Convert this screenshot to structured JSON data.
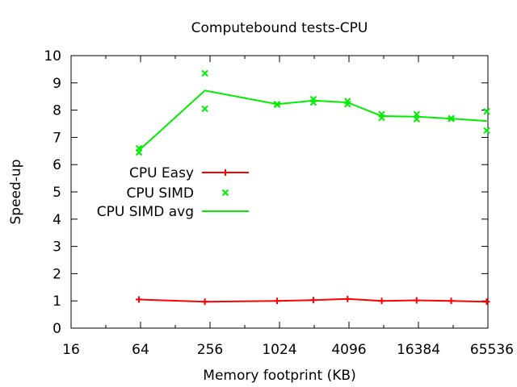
{
  "chart_data": {
    "type": "line",
    "title": "Computebound tests-CPU",
    "xlabel": "Memory footprint (KB)",
    "ylabel": "Speed-up",
    "x_scale": "log2",
    "xlim": [
      16,
      65536
    ],
    "ylim": [
      0,
      10
    ],
    "x_ticks": [
      16,
      64,
      256,
      1024,
      4096,
      16384,
      65536
    ],
    "x_tick_labels": [
      "16",
      "64",
      "256",
      "1024",
      "4096",
      "16384",
      "65536"
    ],
    "y_ticks": [
      0,
      1,
      2,
      3,
      4,
      5,
      6,
      7,
      8,
      9,
      10
    ],
    "y_tick_labels": [
      "0",
      "1",
      "2",
      "3",
      "4",
      "5",
      "6",
      "7",
      "8",
      "9",
      "10"
    ],
    "grid": false,
    "legend_position": "left-middle",
    "series": [
      {
        "name": "CPU Easy",
        "style": "linespoints",
        "marker": "plus",
        "color": "#ff0000",
        "x": [
          62,
          231,
          976,
          2012,
          3986,
          7877,
          15800,
          31500,
          64050
        ],
        "y": [
          1.05,
          0.97,
          1.0,
          1.03,
          1.07,
          1.0,
          1.02,
          1.0,
          0.97
        ]
      },
      {
        "name": "CPU SIMD",
        "style": "points",
        "marker": "cross",
        "color": "#00ee00",
        "points": [
          [
            62,
            6.6
          ],
          [
            62,
            6.45
          ],
          [
            231,
            9.35
          ],
          [
            231,
            8.05
          ],
          [
            976,
            8.22
          ],
          [
            976,
            8.2
          ],
          [
            2012,
            8.4
          ],
          [
            2012,
            8.28
          ],
          [
            3986,
            8.33
          ],
          [
            3986,
            8.22
          ],
          [
            7877,
            7.85
          ],
          [
            7877,
            7.72
          ],
          [
            15800,
            7.85
          ],
          [
            15800,
            7.67
          ],
          [
            31500,
            7.7
          ],
          [
            31500,
            7.68
          ],
          [
            64050,
            7.95
          ],
          [
            64050,
            7.25
          ]
        ]
      },
      {
        "name": "CPU SIMD avg",
        "style": "lines",
        "color": "#00ee00",
        "x": [
          62,
          231,
          976,
          2012,
          3986,
          7877,
          15800,
          31500,
          64050
        ],
        "y": [
          6.52,
          8.72,
          8.22,
          8.35,
          8.28,
          7.78,
          7.76,
          7.69,
          7.6
        ]
      }
    ]
  }
}
